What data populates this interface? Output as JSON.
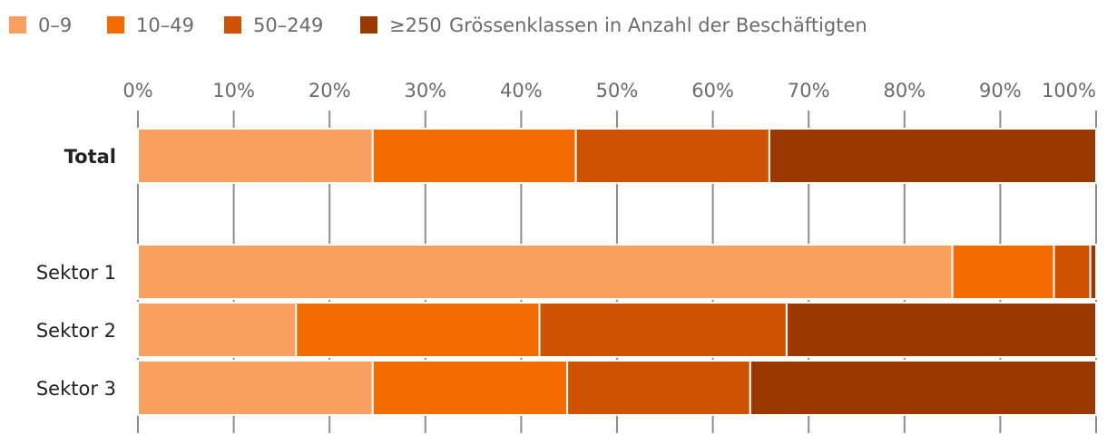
{
  "chart_data": {
    "type": "bar",
    "orientation": "horizontal",
    "stacked": true,
    "normalized": true,
    "categories": [
      "Total",
      "Sektor 1",
      "Sektor 2",
      "Sektor 3"
    ],
    "category_bold": [
      true,
      false,
      false,
      false
    ],
    "series": [
      {
        "name": "0–9",
        "color": "#f9a05e",
        "values": [
          24.5,
          85.0,
          16.5,
          24.5
        ]
      },
      {
        "name": "10–49",
        "color": "#f36b00",
        "values": [
          21.2,
          10.6,
          25.4,
          20.3
        ]
      },
      {
        "name": "50–249",
        "color": "#ce5200",
        "values": [
          20.2,
          3.8,
          25.8,
          19.1
        ]
      },
      {
        "name": "≥250",
        "color": "#9a3800",
        "values": [
          34.1,
          0.6,
          32.3,
          36.1
        ]
      }
    ],
    "legend_title": "Grössenklassen in Anzahl der Beschäftigten",
    "legend_position": "top-left",
    "xlim": [
      0,
      100
    ],
    "x_ticks": [
      "0%",
      "10%",
      "20%",
      "30%",
      "40%",
      "50%",
      "60%",
      "70%",
      "80%",
      "90%",
      "100%"
    ],
    "x_axis_position": "top",
    "grid": true
  }
}
